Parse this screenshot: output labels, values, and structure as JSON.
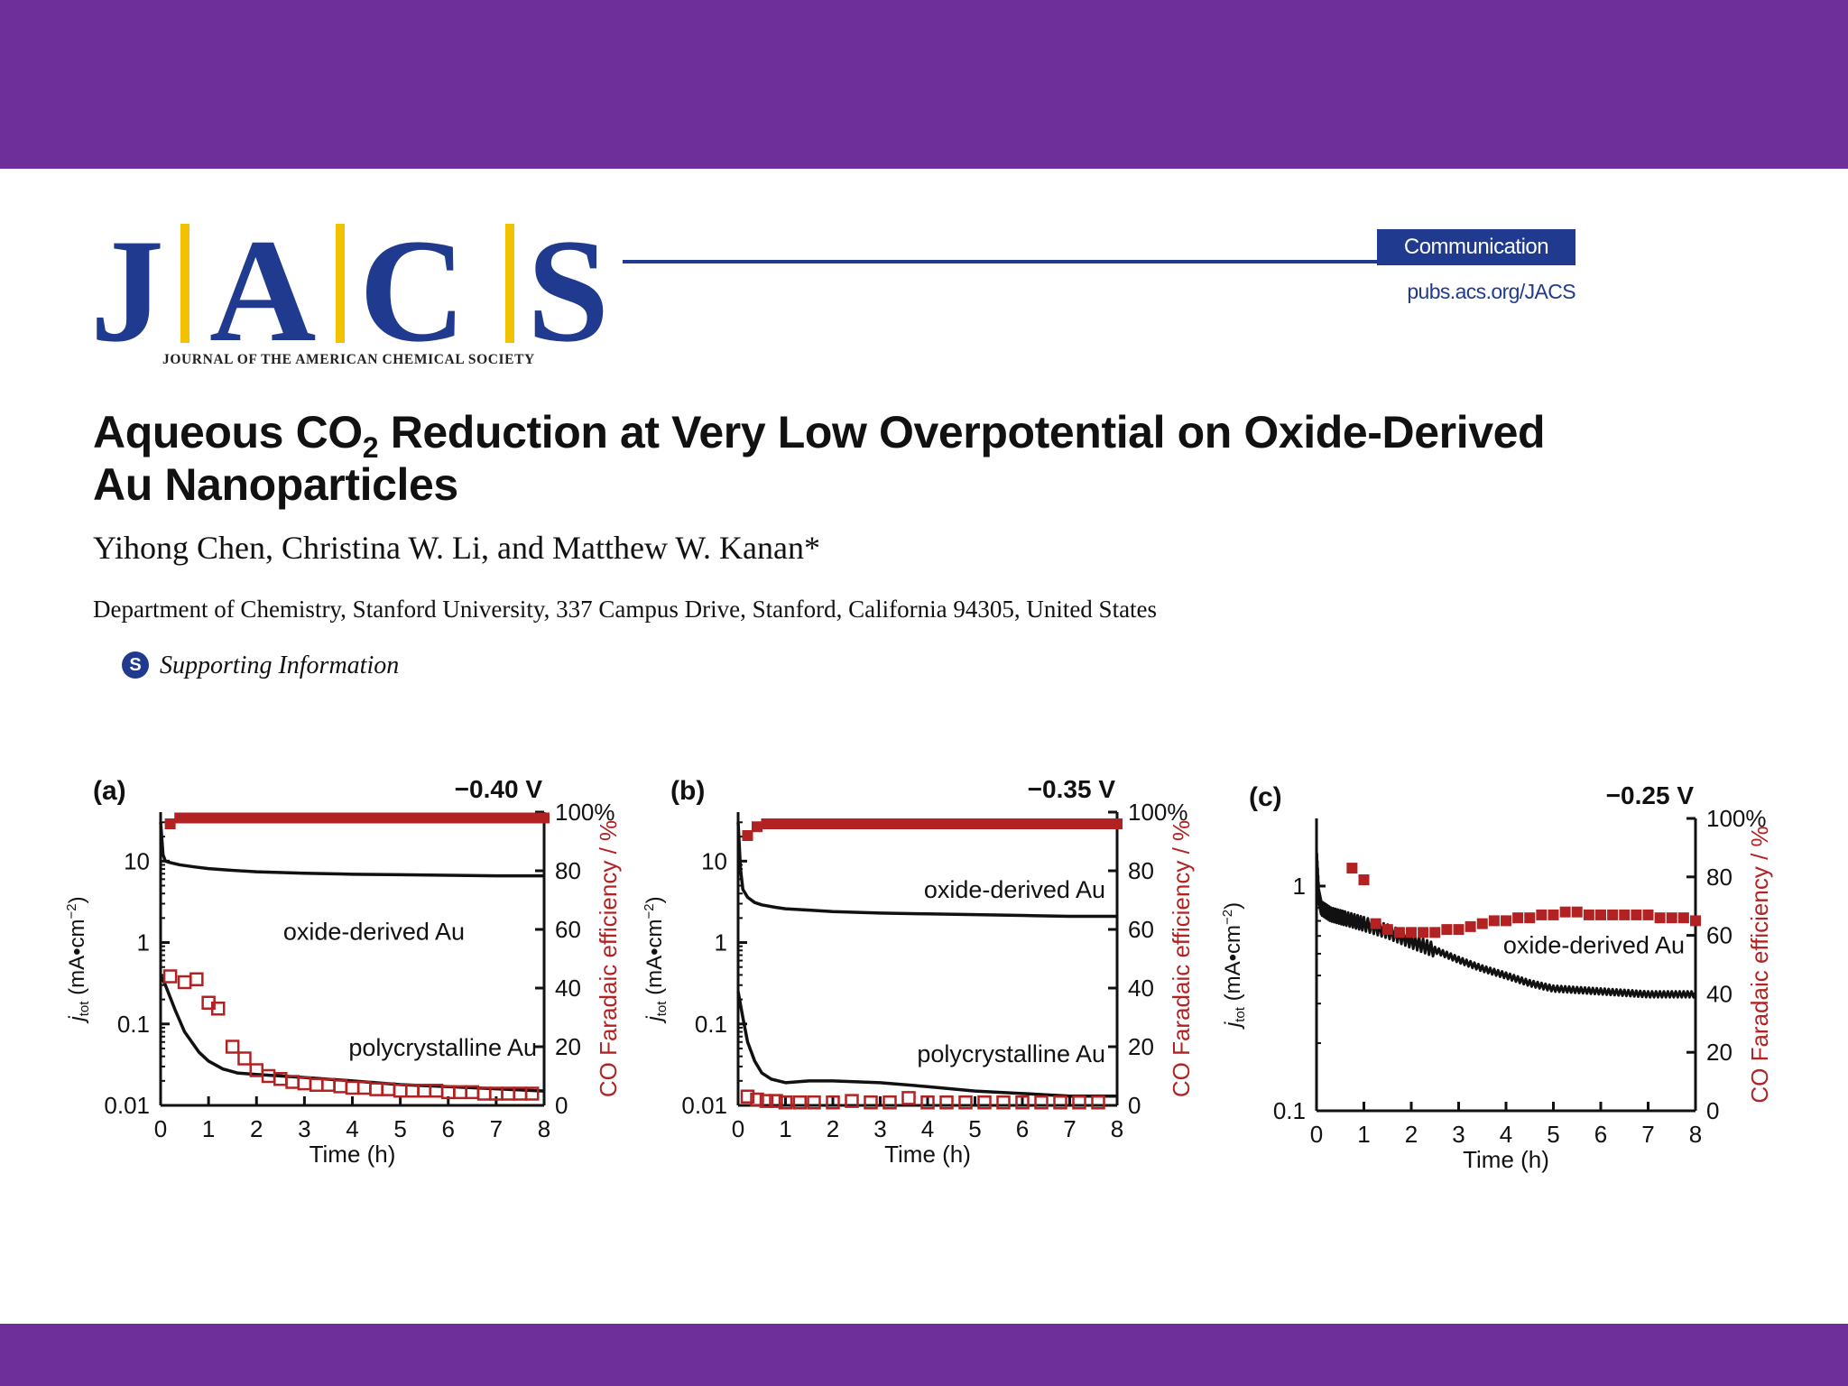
{
  "theme": {
    "band_color": "#6f2f9b",
    "journal_blue": "#1f3a8f",
    "logo_bar_color": "#f2c200"
  },
  "header": {
    "logo_letters": [
      "J",
      "A",
      "C",
      "S"
    ],
    "logo_subtitle": "JOURNAL OF THE AMERICAN CHEMICAL SOCIETY",
    "badge": "Communication",
    "url": "pubs.acs.org/JACS"
  },
  "article": {
    "title_part1": "Aqueous CO",
    "title_sub": "2",
    "title_part2": " Reduction at Very Low Overpotential on Oxide-Derived Au Nanoparticles",
    "authors": "Yihong Chen, Christina W. Li, and Matthew W. Kanan*",
    "affiliation": "Department of Chemistry, Stanford University, 337 Campus Drive, Stanford, California 94305, United States",
    "supporting_icon": "S",
    "supporting_info": "Supporting Information"
  },
  "chart_data": [
    {
      "type": "line",
      "panel": "(a)",
      "title": "−0.40 V",
      "xlabel": "Time (h)",
      "ylabel_left_main": "j",
      "ylabel_left_sub": "tot",
      "ylabel_left_units": " (mA•cm",
      "ylabel_left_exp": "−2",
      "ylabel_left_close": ")",
      "ylabel_right": "CO Faradaic efficiency / %",
      "x_ticks": [
        "0",
        "1",
        "2",
        "3",
        "4",
        "5",
        "6",
        "7",
        "8"
      ],
      "y_ticks_left": [
        "0.01",
        "0.1",
        "1",
        "10"
      ],
      "y_ticks_right": [
        "0",
        "20",
        "40",
        "60",
        "80",
        "100"
      ],
      "xlim": [
        0,
        8
      ],
      "ylim_left": [
        0.01,
        40
      ],
      "ylim_right": [
        0,
        100
      ],
      "series": [
        {
          "name": "oxide-derived Au",
          "axis": "left",
          "style": "line",
          "x": [
            0,
            0.05,
            0.1,
            0.2,
            0.4,
            0.7,
            1,
            1.5,
            2,
            3,
            4,
            5,
            6,
            7,
            8
          ],
          "y": [
            30,
            12,
            10,
            9.6,
            9,
            8.5,
            8.1,
            7.7,
            7.4,
            7.1,
            6.9,
            6.8,
            6.7,
            6.6,
            6.6
          ]
        },
        {
          "name": "polycrystalline Au",
          "axis": "left",
          "style": "line",
          "x": [
            0,
            0.1,
            0.3,
            0.5,
            0.8,
            1,
            1.3,
            1.6,
            2,
            2.5,
            3,
            4,
            5,
            6,
            7,
            8
          ],
          "y": [
            0.4,
            0.3,
            0.15,
            0.08,
            0.045,
            0.035,
            0.028,
            0.025,
            0.024,
            0.023,
            0.022,
            0.02,
            0.018,
            0.017,
            0.016,
            0.015
          ]
        },
        {
          "name": "",
          "axis": "right",
          "style": "filled-square",
          "x": [
            0.2,
            0.4,
            0.6,
            0.8,
            1,
            1.2,
            1.4,
            1.6,
            1.8,
            2,
            2.2,
            2.4,
            2.6,
            2.8,
            3,
            3.2,
            3.4,
            3.6,
            3.8,
            4,
            4.2,
            4.4,
            4.6,
            4.8,
            5,
            5.2,
            5.4,
            5.6,
            5.8,
            6,
            6.2,
            6.4,
            6.6,
            6.8,
            7,
            7.2,
            7.4,
            7.6,
            7.8,
            8
          ],
          "y": [
            96,
            98,
            98,
            98,
            98,
            98,
            98,
            98,
            98,
            98,
            98,
            98,
            98,
            98,
            98,
            98,
            98,
            98,
            98,
            98,
            98,
            98,
            98,
            98,
            98,
            98,
            98,
            98,
            98,
            98,
            98,
            98,
            98,
            98,
            98,
            98,
            98,
            98,
            98,
            98
          ]
        },
        {
          "name": "",
          "axis": "right",
          "style": "open-square",
          "x": [
            0.2,
            0.5,
            0.75,
            1,
            1.2,
            1.5,
            1.75,
            2,
            2.25,
            2.5,
            2.75,
            3,
            3.25,
            3.5,
            3.75,
            4,
            4.25,
            4.5,
            4.75,
            5,
            5.25,
            5.5,
            5.75,
            6,
            6.25,
            6.5,
            6.75,
            7,
            7.25,
            7.5,
            7.75
          ],
          "y": [
            44,
            42,
            43,
            35,
            33,
            20,
            16,
            12,
            10,
            9,
            8,
            7.5,
            7,
            7,
            6.5,
            6,
            6,
            5.5,
            5.5,
            5,
            5,
            5,
            5,
            4.5,
            4.5,
            4.5,
            4,
            4,
            4,
            4,
            4
          ]
        }
      ]
    },
    {
      "type": "line",
      "panel": "(b)",
      "title": "−0.35 V",
      "xlabel": "Time (h)",
      "ylabel_left_main": "j",
      "ylabel_left_sub": "tot",
      "ylabel_left_units": " (mA•cm",
      "ylabel_left_exp": "−2",
      "ylabel_left_close": ")",
      "ylabel_right": "CO Faradaic efficiency / %",
      "x_ticks": [
        "0",
        "1",
        "2",
        "3",
        "4",
        "5",
        "6",
        "7",
        "8"
      ],
      "y_ticks_left": [
        "0.01",
        "0.1",
        "1",
        "10"
      ],
      "y_ticks_right": [
        "0",
        "20",
        "40",
        "60",
        "80",
        "100"
      ],
      "xlim": [
        0,
        8
      ],
      "ylim_left": [
        0.01,
        40
      ],
      "ylim_right": [
        0,
        100
      ],
      "series": [
        {
          "name": "oxide-derived Au",
          "axis": "left",
          "style": "line",
          "x": [
            0,
            0.05,
            0.1,
            0.2,
            0.35,
            0.5,
            0.8,
            1,
            1.5,
            2,
            3,
            4,
            5,
            6,
            7,
            8
          ],
          "y": [
            30,
            8,
            4.5,
            3.6,
            3.1,
            2.9,
            2.7,
            2.6,
            2.5,
            2.4,
            2.3,
            2.25,
            2.2,
            2.15,
            2.1,
            2.1
          ]
        },
        {
          "name": "polycrystalline Au",
          "axis": "left",
          "style": "line",
          "x": [
            0,
            0.1,
            0.2,
            0.35,
            0.5,
            0.7,
            1,
            1.5,
            2,
            3,
            4,
            5,
            6,
            7,
            8
          ],
          "y": [
            0.25,
            0.12,
            0.06,
            0.035,
            0.025,
            0.021,
            0.019,
            0.02,
            0.02,
            0.019,
            0.017,
            0.015,
            0.014,
            0.013,
            0.013
          ]
        },
        {
          "name": "",
          "axis": "right",
          "style": "filled-square",
          "x": [
            0.2,
            0.4,
            0.6,
            0.8,
            1,
            1.2,
            1.4,
            1.6,
            1.8,
            2,
            2.2,
            2.4,
            2.6,
            2.8,
            3,
            3.2,
            3.4,
            3.6,
            3.8,
            4,
            4.2,
            4.4,
            4.6,
            4.8,
            5,
            5.2,
            5.4,
            5.6,
            5.8,
            6,
            6.2,
            6.4,
            6.6,
            6.8,
            7,
            7.2,
            7.4,
            7.6,
            7.8,
            8
          ],
          "y": [
            92,
            95,
            96,
            96,
            96,
            96,
            96,
            96,
            96,
            96,
            96,
            96,
            96,
            96,
            96,
            96,
            96,
            96,
            96,
            96,
            96,
            96,
            96,
            96,
            96,
            96,
            96,
            96,
            96,
            96,
            96,
            96,
            96,
            96,
            96,
            96,
            96,
            96,
            96,
            96
          ]
        },
        {
          "name": "",
          "axis": "right",
          "style": "open-square",
          "x": [
            0.2,
            0.4,
            0.6,
            0.8,
            1,
            1.3,
            1.6,
            2,
            2.4,
            2.8,
            3.2,
            3.6,
            4,
            4.4,
            4.8,
            5.2,
            5.6,
            6,
            6.4,
            6.8,
            7.2,
            7.6
          ],
          "y": [
            3,
            2,
            1.5,
            1.5,
            1,
            1,
            1,
            1,
            1.5,
            1,
            1,
            2.5,
            1,
            1,
            1,
            1,
            1,
            1,
            1,
            1,
            1,
            1
          ]
        }
      ]
    },
    {
      "type": "line",
      "panel": "(c)",
      "title": "−0.25 V",
      "xlabel": "Time (h)",
      "ylabel_left_main": "j",
      "ylabel_left_sub": "tot",
      "ylabel_left_units": " (mA•cm",
      "ylabel_left_exp": "−2",
      "ylabel_left_close": ")",
      "ylabel_right": "CO Faradaic efficiency / %",
      "x_ticks": [
        "0",
        "1",
        "2",
        "3",
        "4",
        "5",
        "6",
        "7",
        "8"
      ],
      "y_ticks_left": [
        "0.1",
        "1"
      ],
      "y_ticks_right": [
        "0",
        "20",
        "40",
        "60",
        "80",
        "100"
      ],
      "xlim": [
        0,
        8
      ],
      "ylim_left": [
        0.1,
        2
      ],
      "ylim_right": [
        0,
        100
      ],
      "series": [
        {
          "name": "oxide-derived Au",
          "axis": "left",
          "style": "noisy-line",
          "x": [
            0,
            0.05,
            0.1,
            0.3,
            0.6,
            1,
            1.5,
            2,
            2.5,
            3,
            3.5,
            4,
            4.5,
            5,
            5.5,
            6,
            6.5,
            7,
            7.5,
            8
          ],
          "y": [
            1.4,
            0.9,
            0.8,
            0.75,
            0.72,
            0.68,
            0.63,
            0.57,
            0.52,
            0.47,
            0.43,
            0.4,
            0.37,
            0.35,
            0.345,
            0.34,
            0.335,
            0.33,
            0.33,
            0.33
          ]
        },
        {
          "name": "",
          "axis": "right",
          "style": "filled-square",
          "x": [
            0.75,
            1,
            1.25,
            1.5,
            1.75,
            2,
            2.25,
            2.5,
            2.75,
            3,
            3.25,
            3.5,
            3.75,
            4,
            4.25,
            4.5,
            4.75,
            5,
            5.25,
            5.5,
            5.75,
            6,
            6.25,
            6.5,
            6.75,
            7,
            7.25,
            7.5,
            7.75,
            8
          ],
          "y": [
            83,
            79,
            64,
            62,
            61,
            61,
            61,
            61,
            62,
            62,
            63,
            64,
            65,
            65,
            66,
            66,
            67,
            67,
            68,
            68,
            67,
            67,
            67,
            67,
            67,
            67,
            66,
            66,
            66,
            65
          ]
        }
      ]
    }
  ]
}
